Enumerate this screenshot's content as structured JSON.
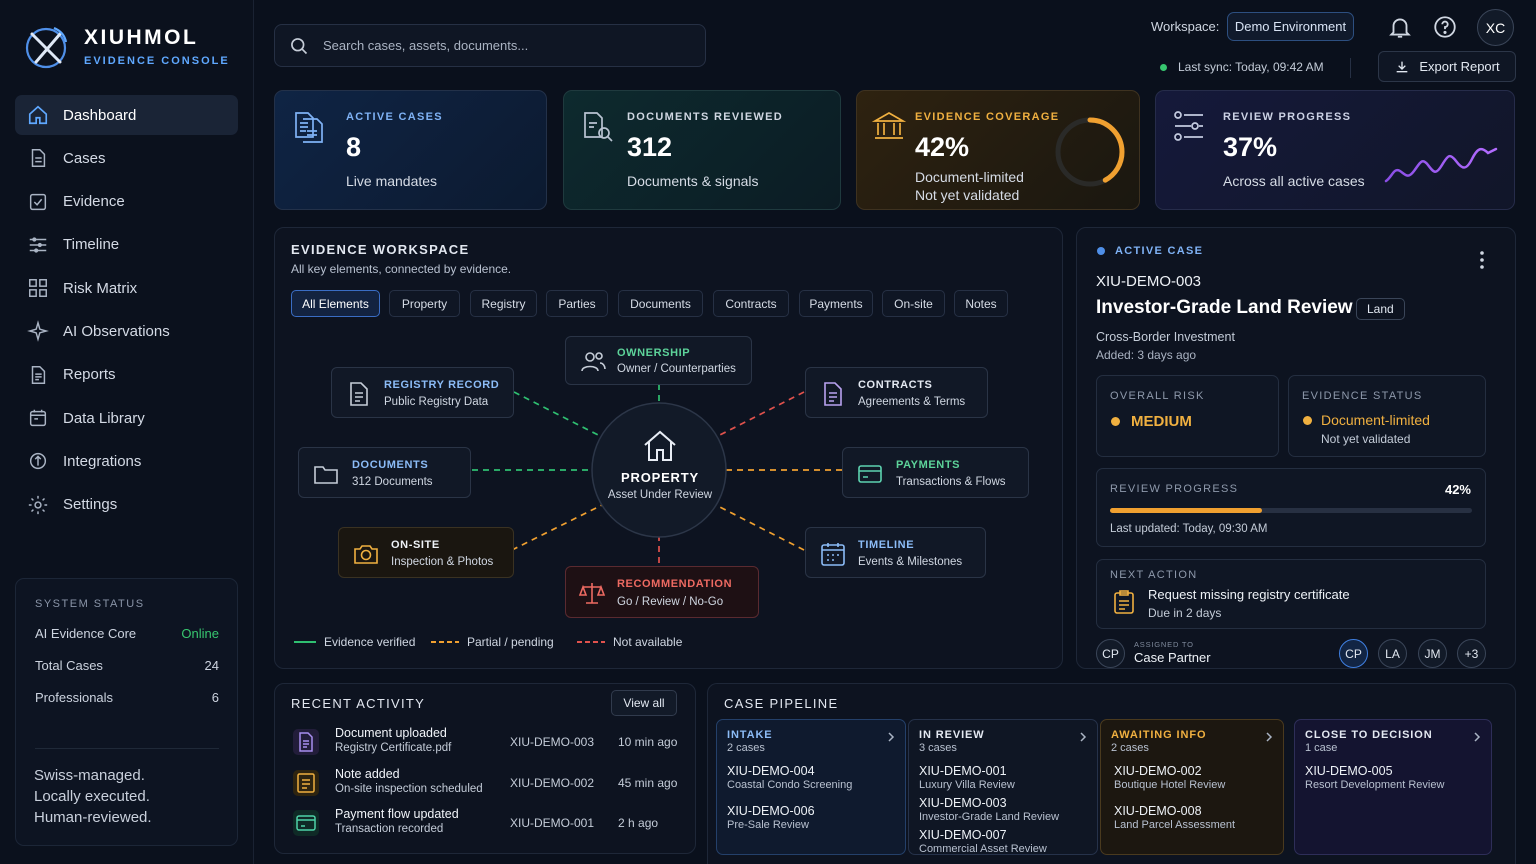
{
  "brand": {
    "name": "XIUHMOL",
    "subtitle": "EVIDENCE CONSOLE"
  },
  "nav": [
    {
      "label": "Dashboard",
      "icon": "home-icon",
      "active": true
    },
    {
      "label": "Cases",
      "icon": "document-icon"
    },
    {
      "label": "Evidence",
      "icon": "check-square-icon"
    },
    {
      "label": "Timeline",
      "icon": "timeline-icon"
    },
    {
      "label": "Risk Matrix",
      "icon": "matrix-icon"
    },
    {
      "label": "AI Observations",
      "icon": "sparkle-icon"
    },
    {
      "label": "Reports",
      "icon": "report-icon"
    },
    {
      "label": "Data Library",
      "icon": "library-icon"
    },
    {
      "label": "Integrations",
      "icon": "integration-icon"
    },
    {
      "label": "Settings",
      "icon": "gear-icon"
    }
  ],
  "system_status": {
    "title": "SYSTEM STATUS",
    "rows": [
      {
        "label": "AI Evidence Core",
        "value": "Online",
        "color": "#37c66f"
      },
      {
        "label": "Total Cases",
        "value": "24"
      },
      {
        "label": "Professionals",
        "value": "6"
      }
    ],
    "motto": [
      "Swiss-managed.",
      "Locally executed.",
      "Human-reviewed."
    ]
  },
  "search": {
    "placeholder": "Search cases, assets, documents..."
  },
  "workspace": {
    "label": "Workspace:",
    "value": "Demo Environment"
  },
  "user_initials": "XC",
  "sync": {
    "text": "Last sync: Today, 09:42 AM"
  },
  "export_label": "Export Report",
  "kpis": {
    "active_cases": {
      "title": "ACTIVE CASES",
      "value": "8",
      "sub": "Live mandates"
    },
    "documents_reviewed": {
      "title": "DOCUMENTS REVIEWED",
      "value": "312",
      "sub": "Documents & signals"
    },
    "evidence_coverage": {
      "title": "EVIDENCE COVERAGE",
      "value": "42%",
      "sub1": "Document-limited",
      "sub2": "Not yet validated",
      "fraction": 0.42
    },
    "review_progress": {
      "title": "REVIEW PROGRESS",
      "value": "37%",
      "sub": "Across all active cases"
    }
  },
  "workspace_panel": {
    "title": "EVIDENCE WORKSPACE",
    "subtitle": "All key elements, connected by evidence.",
    "tabs": [
      "All Elements",
      "Property",
      "Registry",
      "Parties",
      "Documents",
      "Contracts",
      "Payments",
      "On-site",
      "Notes"
    ],
    "center": {
      "title": "PROPERTY",
      "sub": "Asset Under Review"
    },
    "nodes": {
      "ownership": {
        "title": "OWNERSHIP",
        "sub": "Owner / Counterparties"
      },
      "registry": {
        "title": "REGISTRY RECORD",
        "sub": "Public Registry Data"
      },
      "contracts": {
        "title": "CONTRACTS",
        "sub": "Agreements & Terms"
      },
      "documents": {
        "title": "DOCUMENTS",
        "sub": "312 Documents"
      },
      "payments": {
        "title": "PAYMENTS",
        "sub": "Transactions & Flows"
      },
      "onsite": {
        "title": "ON-SITE",
        "sub": "Inspection & Photos"
      },
      "timeline": {
        "title": "TIMELINE",
        "sub": "Events & Milestones"
      },
      "recommendation": {
        "title": "RECOMMENDATION",
        "sub": "Go / Review / No-Go"
      }
    },
    "legend": [
      {
        "label": "Evidence verified",
        "color": "#2fbf71"
      },
      {
        "label": "Partial / pending",
        "color": "#f0a030"
      },
      {
        "label": "Not available",
        "color": "#e0524d"
      }
    ]
  },
  "active_case": {
    "label": "ACTIVE CASE",
    "id": "XIU-DEMO-003",
    "title": "Investor-Grade Land Review",
    "tag": "Land",
    "type": "Cross-Border Investment",
    "added": "Added: 3 days ago",
    "overall_risk": {
      "label": "OVERALL RISK",
      "value": "MEDIUM"
    },
    "evidence_status": {
      "label": "EVIDENCE STATUS",
      "value": "Document-limited",
      "sub": "Not yet validated"
    },
    "review": {
      "label": "REVIEW PROGRESS",
      "value": "42%",
      "fraction": 0.42,
      "updated": "Last updated: Today, 09:30 AM"
    },
    "next_action": {
      "label": "NEXT ACTION",
      "title": "Request missing registry certificate",
      "due": "Due in 2 days"
    },
    "assigned": {
      "label": "ASSIGNED TO",
      "initials": "CP",
      "name": "Case Partner"
    },
    "team": [
      "CP",
      "LA",
      "JM",
      "+3"
    ]
  },
  "recent_activity": {
    "title": "RECENT ACTIVITY",
    "view_all": "View all",
    "items": [
      {
        "title": "Document uploaded",
        "sub": "Registry Certificate.pdf",
        "case": "XIU-DEMO-003",
        "time": "10 min ago",
        "icon": "document-icon",
        "color": "#8a6ee0"
      },
      {
        "title": "Note added",
        "sub": "On-site inspection scheduled",
        "case": "XIU-DEMO-002",
        "time": "45 min ago",
        "icon": "note-icon",
        "color": "#e0a030"
      },
      {
        "title": "Payment flow updated",
        "sub": "Transaction recorded",
        "case": "XIU-DEMO-001",
        "time": "2 h ago",
        "icon": "payment-icon",
        "color": "#2fbf91"
      }
    ]
  },
  "pipeline": {
    "title": "CASE PIPELINE",
    "columns": [
      {
        "name": "INTAKE",
        "count": "2 cases",
        "color": "#5fa8ff",
        "items": [
          {
            "id": "XIU-DEMO-004",
            "desc": "Coastal Condo Screening"
          },
          {
            "id": "XIU-DEMO-006",
            "desc": "Pre-Sale Review"
          }
        ]
      },
      {
        "name": "IN REVIEW",
        "count": "3 cases",
        "color": "#e4e9f2",
        "items": [
          {
            "id": "XIU-DEMO-001",
            "desc": "Luxury Villa Review"
          },
          {
            "id": "XIU-DEMO-003",
            "desc": "Investor-Grade Land Review"
          },
          {
            "id": "XIU-DEMO-007",
            "desc": "Commercial Asset Review"
          }
        ]
      },
      {
        "name": "AWAITING INFO",
        "count": "2 cases",
        "color": "#f0b040",
        "items": [
          {
            "id": "XIU-DEMO-002",
            "desc": "Boutique Hotel Review"
          },
          {
            "id": "XIU-DEMO-008",
            "desc": "Land Parcel Assessment"
          }
        ]
      },
      {
        "name": "CLOSE TO DECISION",
        "count": "1 case",
        "color": "#e4e9f2",
        "items": [
          {
            "id": "XIU-DEMO-005",
            "desc": "Resort Development Review"
          }
        ]
      }
    ]
  }
}
